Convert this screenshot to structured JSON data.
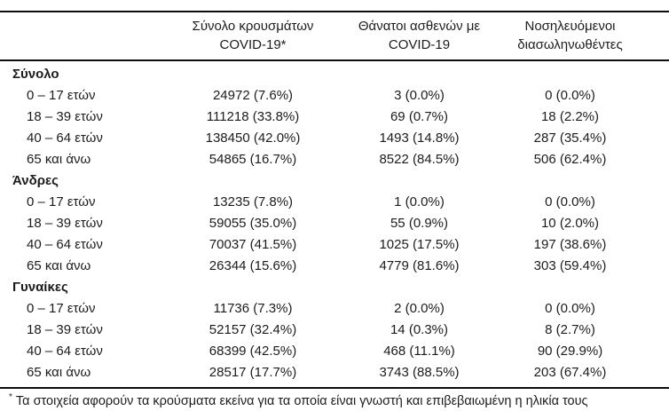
{
  "table": {
    "header": {
      "cases": {
        "line1": "Σύνολο κρουσμάτων",
        "line2": "COVID-19*"
      },
      "deaths": {
        "line1": "Θάνατοι ασθενών με",
        "line2": "COVID-19"
      },
      "intubated": {
        "line1": "Νοσηλευόμενοι",
        "line2": "διασωληνωθέντες"
      }
    },
    "groups": [
      {
        "label": "Σύνολο",
        "rows": [
          {
            "label": "0 – 17 ετών",
            "cases": "24972 (7.6%)",
            "deaths": "3 (0.0%)",
            "intubated": "0 (0.0%)"
          },
          {
            "label": "18 – 39 ετών",
            "cases": "111218 (33.8%)",
            "deaths": "69 (0.7%)",
            "intubated": "18 (2.2%)"
          },
          {
            "label": "40 – 64 ετών",
            "cases": "138450 (42.0%)",
            "deaths": "1493 (14.8%)",
            "intubated": "287 (35.4%)"
          },
          {
            "label": "65 και άνω",
            "cases": "54865 (16.7%)",
            "deaths": "8522 (84.5%)",
            "intubated": "506 (62.4%)"
          }
        ]
      },
      {
        "label": "Άνδρες",
        "rows": [
          {
            "label": "0 – 17 ετών",
            "cases": "13235 (7.8%)",
            "deaths": "1 (0.0%)",
            "intubated": "0 (0.0%)"
          },
          {
            "label": "18 – 39 ετών",
            "cases": "59055 (35.0%)",
            "deaths": "55 (0.9%)",
            "intubated": "10 (2.0%)"
          },
          {
            "label": "40 – 64 ετών",
            "cases": "70037 (41.5%)",
            "deaths": "1025 (17.5%)",
            "intubated": "197 (38.6%)"
          },
          {
            "label": "65 και άνω",
            "cases": "26344 (15.6%)",
            "deaths": "4779 (81.6%)",
            "intubated": "303 (59.4%)"
          }
        ]
      },
      {
        "label": "Γυναίκες",
        "rows": [
          {
            "label": "0 – 17 ετών",
            "cases": "11736 (7.3%)",
            "deaths": "2 (0.0%)",
            "intubated": "0 (0.0%)"
          },
          {
            "label": "18 – 39 ετών",
            "cases": "52157 (32.4%)",
            "deaths": "14 (0.3%)",
            "intubated": "8 (2.7%)"
          },
          {
            "label": "40 – 64 ετών",
            "cases": "68399 (42.5%)",
            "deaths": "468 (11.1%)",
            "intubated": "90 (29.9%)"
          },
          {
            "label": "65 και άνω",
            "cases": "28517 (17.7%)",
            "deaths": "3743 (88.5%)",
            "intubated": "203 (67.4%)"
          }
        ]
      }
    ],
    "footnote": {
      "marker": "*",
      "text": "Τα στοιχεία αφορούν τα κρούσματα εκείνα για τα οποία είναι γνωστή και επιβεβαιωμένη η ηλικία τους"
    }
  }
}
